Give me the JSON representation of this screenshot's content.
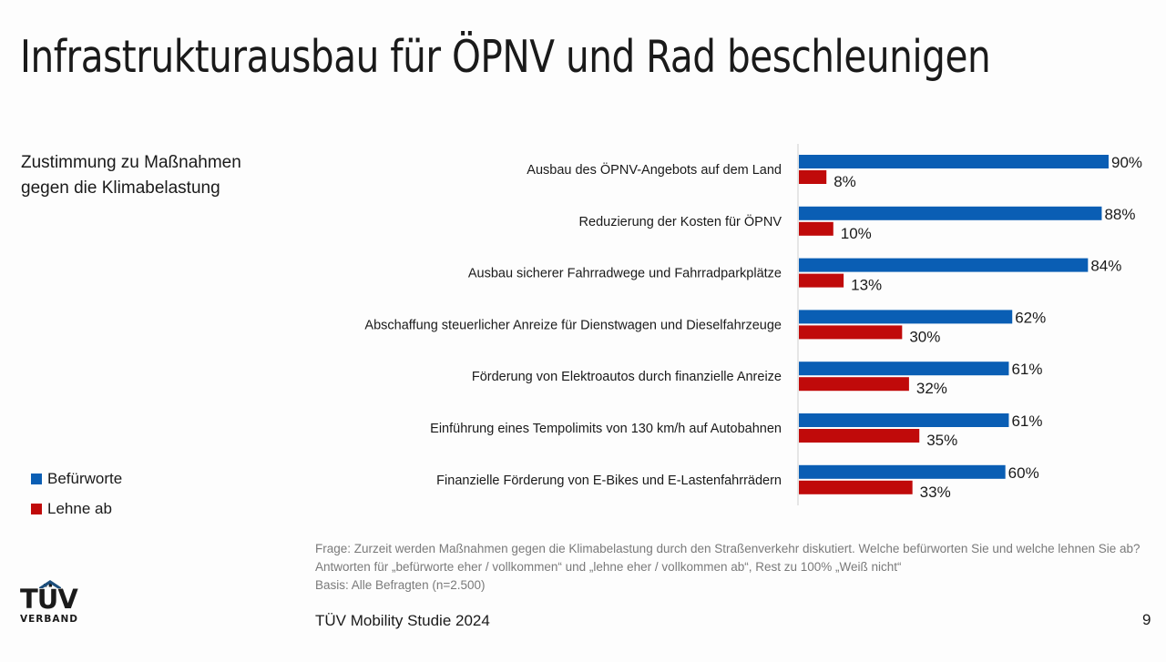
{
  "header": {
    "title": "Infrastrukturausbau für ÖPNV und Rad beschleunigen"
  },
  "subtitle_lines": [
    "Zustimmung zu Maßnahmen",
    "gegen die Klimabelastung"
  ],
  "legend": [
    {
      "label": "Befürworte",
      "color": "#0a5eb4"
    },
    {
      "label": "Lehne ab",
      "color": "#c00a0a"
    }
  ],
  "chart_data": {
    "type": "bar",
    "orientation": "horizontal",
    "title": "Zustimmung zu Maßnahmen gegen die Klimabelastung",
    "xlabel": "",
    "ylabel": "",
    "xlim": [
      0,
      100
    ],
    "grid": false,
    "legend_position": "bottom-left",
    "categories": [
      "Ausbau des ÖPNV-Angebots auf dem Land",
      "Reduzierung der Kosten für ÖPNV",
      "Ausbau sicherer Fahrradwege und Fahrradparkplätze",
      "Abschaffung steuerlicher Anreize für Dienstwagen und Dieselfahrzeuge",
      "Förderung von Elektroautos durch finanzielle Anreize",
      "Einführung eines Tempolimits von 130 km/h auf Autobahnen",
      "Finanzielle Förderung von E-Bikes und E-Lastenfahrrädern"
    ],
    "series": [
      {
        "name": "Befürworte",
        "color": "#0a5eb4",
        "values": [
          90,
          88,
          84,
          62,
          61,
          61,
          60
        ],
        "labels": [
          "90%",
          "88%",
          "84%",
          "62%",
          "61%",
          "61%",
          "60%"
        ]
      },
      {
        "name": "Lehne ab",
        "color": "#c00a0a",
        "values": [
          8,
          10,
          13,
          30,
          32,
          35,
          33
        ],
        "labels": [
          "8%",
          "10%",
          "13%",
          "30%",
          "32%",
          "35%",
          "33%"
        ]
      }
    ]
  },
  "footnote": {
    "question": "Frage: Zurzeit werden Maßnahmen gegen die Klimabelastung durch den Straßenverkehr diskutiert. Welche befürworten Sie und welche lehnen Sie ab? Antworten für „befürworte eher / vollkommen“ und „lehne eher / vollkommen ab“, Rest zu 100% „Weiß nicht“",
    "basis": "Basis: Alle Befragten (n=2.500)"
  },
  "footer": {
    "study": "TÜV Mobility Studie 2024",
    "page_number": "9",
    "logo_main": "TÜV",
    "logo_sub": "VERBAND"
  }
}
